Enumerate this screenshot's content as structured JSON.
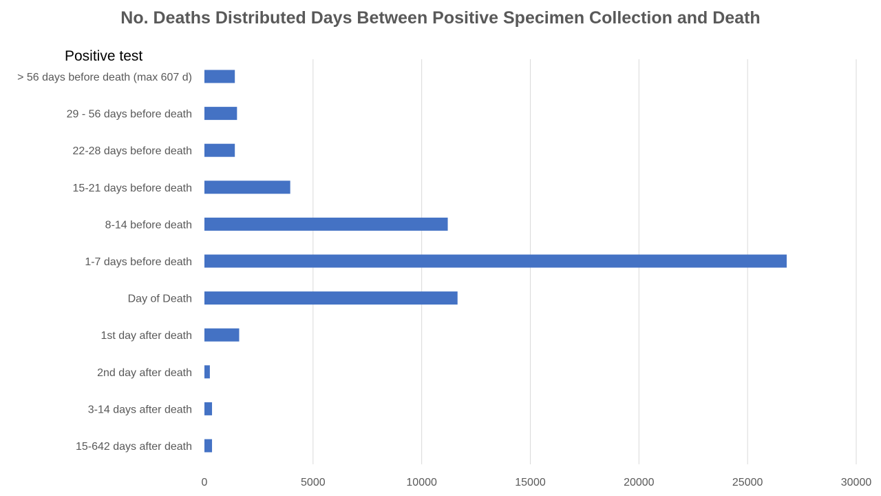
{
  "chart_data": {
    "type": "bar",
    "orientation": "horizontal",
    "title": "No. Deaths Distributed Days Between Positive Specimen Collection and Death",
    "ylabel": "Positive test",
    "xlabel": "",
    "categories": [
      "> 56 days before death (max 607 d)",
      "29 - 56 days before death",
      "22-28 days before death",
      "15-21 days before death",
      "8-14 before death",
      "1-7 days before death",
      "Day of Death",
      "1st day after death",
      "2nd day after death",
      "3-14 days after death",
      "15-642 days after death"
    ],
    "values": [
      1400,
      1500,
      1400,
      3950,
      11200,
      26800,
      11650,
      1600,
      250,
      350,
      350
    ],
    "xlim": [
      0,
      30000
    ],
    "xticks": [
      0,
      5000,
      10000,
      15000,
      20000,
      25000,
      30000
    ],
    "grid": "vertical",
    "legend": "none",
    "bar_color": "#4472C4"
  }
}
